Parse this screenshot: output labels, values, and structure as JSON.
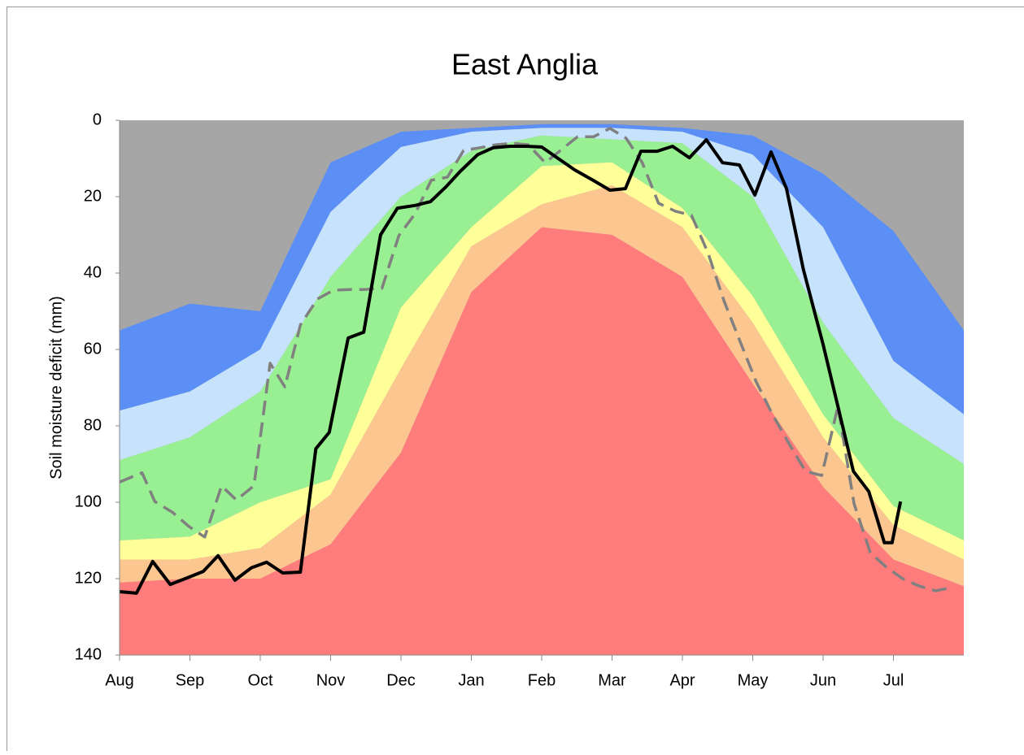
{
  "chart_data": {
    "type": "area",
    "title": "East Anglia",
    "y_label": "Soil moisture deficit (mm)",
    "xlim": [
      0,
      12
    ],
    "xticks": [
      {
        "value": 0,
        "label": "Aug"
      },
      {
        "value": 1,
        "label": "Sep"
      },
      {
        "value": 2,
        "label": "Oct"
      },
      {
        "value": 3,
        "label": "Nov"
      },
      {
        "value": 4,
        "label": "Dec"
      },
      {
        "value": 5,
        "label": "Jan"
      },
      {
        "value": 6,
        "label": "Feb"
      },
      {
        "value": 7,
        "label": "Mar"
      },
      {
        "value": 8,
        "label": "Apr"
      },
      {
        "value": 9,
        "label": "May"
      },
      {
        "value": 10,
        "label": "Jun"
      },
      {
        "value": 11,
        "label": "Jul"
      }
    ],
    "ylim": [
      0,
      140
    ],
    "yticks": [
      0,
      20,
      40,
      60,
      80,
      100,
      120,
      140
    ],
    "y_inverted": true,
    "background": "#a6a6a6",
    "series": [
      {
        "kind": "band",
        "color": "#5b8ff5",
        "x": [
          0,
          1,
          2,
          3,
          4,
          5,
          6,
          7,
          8,
          9,
          10,
          11,
          12
        ],
        "values": [
          55,
          48,
          50,
          11,
          3,
          2,
          1,
          1,
          2,
          4,
          14,
          29,
          55
        ]
      },
      {
        "kind": "band",
        "color": "#c6e3fb",
        "x": [
          0,
          1,
          2,
          3,
          4,
          5,
          6,
          7,
          8,
          9,
          10,
          11,
          12
        ],
        "values": [
          76,
          71,
          60,
          24,
          7,
          3,
          2,
          2,
          3,
          9,
          28,
          63,
          77
        ]
      },
      {
        "kind": "band",
        "color": "#99f092",
        "x": [
          0,
          1,
          2,
          3,
          4,
          5,
          6,
          7,
          8,
          9,
          10,
          11,
          12
        ],
        "values": [
          89,
          83,
          71,
          41,
          20,
          8,
          4,
          5,
          6,
          20,
          53,
          78,
          90
        ]
      },
      {
        "kind": "band",
        "color": "#ffff99",
        "x": [
          0,
          1,
          2,
          3,
          4,
          5,
          6,
          7,
          8,
          9,
          10,
          11,
          12
        ],
        "values": [
          110,
          109,
          100,
          94,
          49,
          28,
          12,
          11,
          23,
          46,
          77,
          101,
          110
        ]
      },
      {
        "kind": "band",
        "color": "#fcc690",
        "x": [
          0,
          1,
          2,
          3,
          4,
          5,
          6,
          7,
          8,
          9,
          10,
          11,
          12
        ],
        "values": [
          115,
          115,
          112,
          98,
          65,
          33,
          22,
          17,
          28,
          53,
          83,
          106,
          115
        ]
      },
      {
        "kind": "band",
        "color": "#ff7c7c",
        "x": [
          0,
          1,
          2,
          3,
          4,
          5,
          6,
          7,
          8,
          9,
          10,
          11,
          12
        ],
        "values": [
          121,
          120,
          120,
          111,
          87,
          45,
          28,
          30,
          41,
          69,
          96,
          115,
          122
        ]
      },
      {
        "kind": "line",
        "color": "#808080",
        "dashed": true,
        "x": [
          0,
          0.32,
          0.5,
          0.75,
          0.99,
          1.21,
          1.45,
          1.66,
          1.91,
          2.14,
          2.35,
          2.57,
          2.81,
          3.04,
          3.27,
          3.48,
          3.73,
          3.97,
          4.2,
          4.43,
          4.66,
          4.89,
          5.12,
          5.35,
          5.58,
          5.81,
          6.05,
          6.28,
          6.51,
          6.74,
          6.97,
          7.2,
          7.43,
          7.66,
          7.9,
          8.13,
          8.36,
          8.59,
          8.82,
          9.05,
          9.28,
          9.51,
          9.75,
          9.98,
          10.21,
          10.44,
          10.67,
          10.9,
          11.13,
          11.36,
          11.6,
          11.83
        ],
        "values": [
          94.7,
          92.3,
          99.8,
          102.6,
          106.4,
          109.1,
          95.7,
          99.4,
          95.7,
          63.6,
          69.8,
          53.6,
          46.8,
          44.5,
          44.3,
          44.3,
          44.0,
          30.2,
          24.5,
          15.7,
          14.9,
          7.9,
          7.2,
          6.4,
          6.0,
          6.4,
          11.1,
          7.7,
          4.3,
          4.3,
          2.1,
          4.7,
          11.1,
          21.7,
          23.8,
          24.9,
          34.5,
          47.2,
          57.9,
          68.5,
          77,
          84.5,
          91.9,
          93,
          74.9,
          100.4,
          113.2,
          117,
          120,
          121.9,
          123.2,
          122.3
        ]
      },
      {
        "kind": "line",
        "color": "#000000",
        "dashed": false,
        "x": [
          0,
          0.24,
          0.47,
          0.72,
          0.96,
          1.19,
          1.4,
          1.64,
          1.87,
          2.09,
          2.32,
          2.57,
          2.79,
          2.98,
          3.25,
          3.47,
          3.71,
          3.95,
          4.2,
          4.42,
          4.64,
          4.84,
          5.09,
          5.31,
          5.55,
          5.78,
          6.0,
          6.22,
          6.47,
          6.73,
          6.97,
          7.19,
          7.41,
          7.64,
          7.86,
          8.1,
          8.34,
          8.57,
          8.81,
          9.03,
          9.26,
          9.48,
          9.72,
          10.0,
          10.21,
          10.43,
          10.65,
          10.87,
          10.98,
          11.1
        ],
        "values": [
          123.4,
          123.8,
          115.5,
          121.5,
          119.8,
          118.1,
          114,
          120.4,
          117.2,
          115.7,
          118.5,
          118.3,
          86,
          81.7,
          57,
          55.5,
          30,
          23,
          22.3,
          21.3,
          17.4,
          13.4,
          9,
          7.2,
          6.8,
          6.8,
          7,
          9.8,
          13,
          15.7,
          18.3,
          17.9,
          8.1,
          8.1,
          6.8,
          9.8,
          5.1,
          11.1,
          11.7,
          19.6,
          8.3,
          17.9,
          39.1,
          58.7,
          74.9,
          91.9,
          97.2,
          110.6,
          110.6,
          99.8
        ]
      }
    ]
  }
}
